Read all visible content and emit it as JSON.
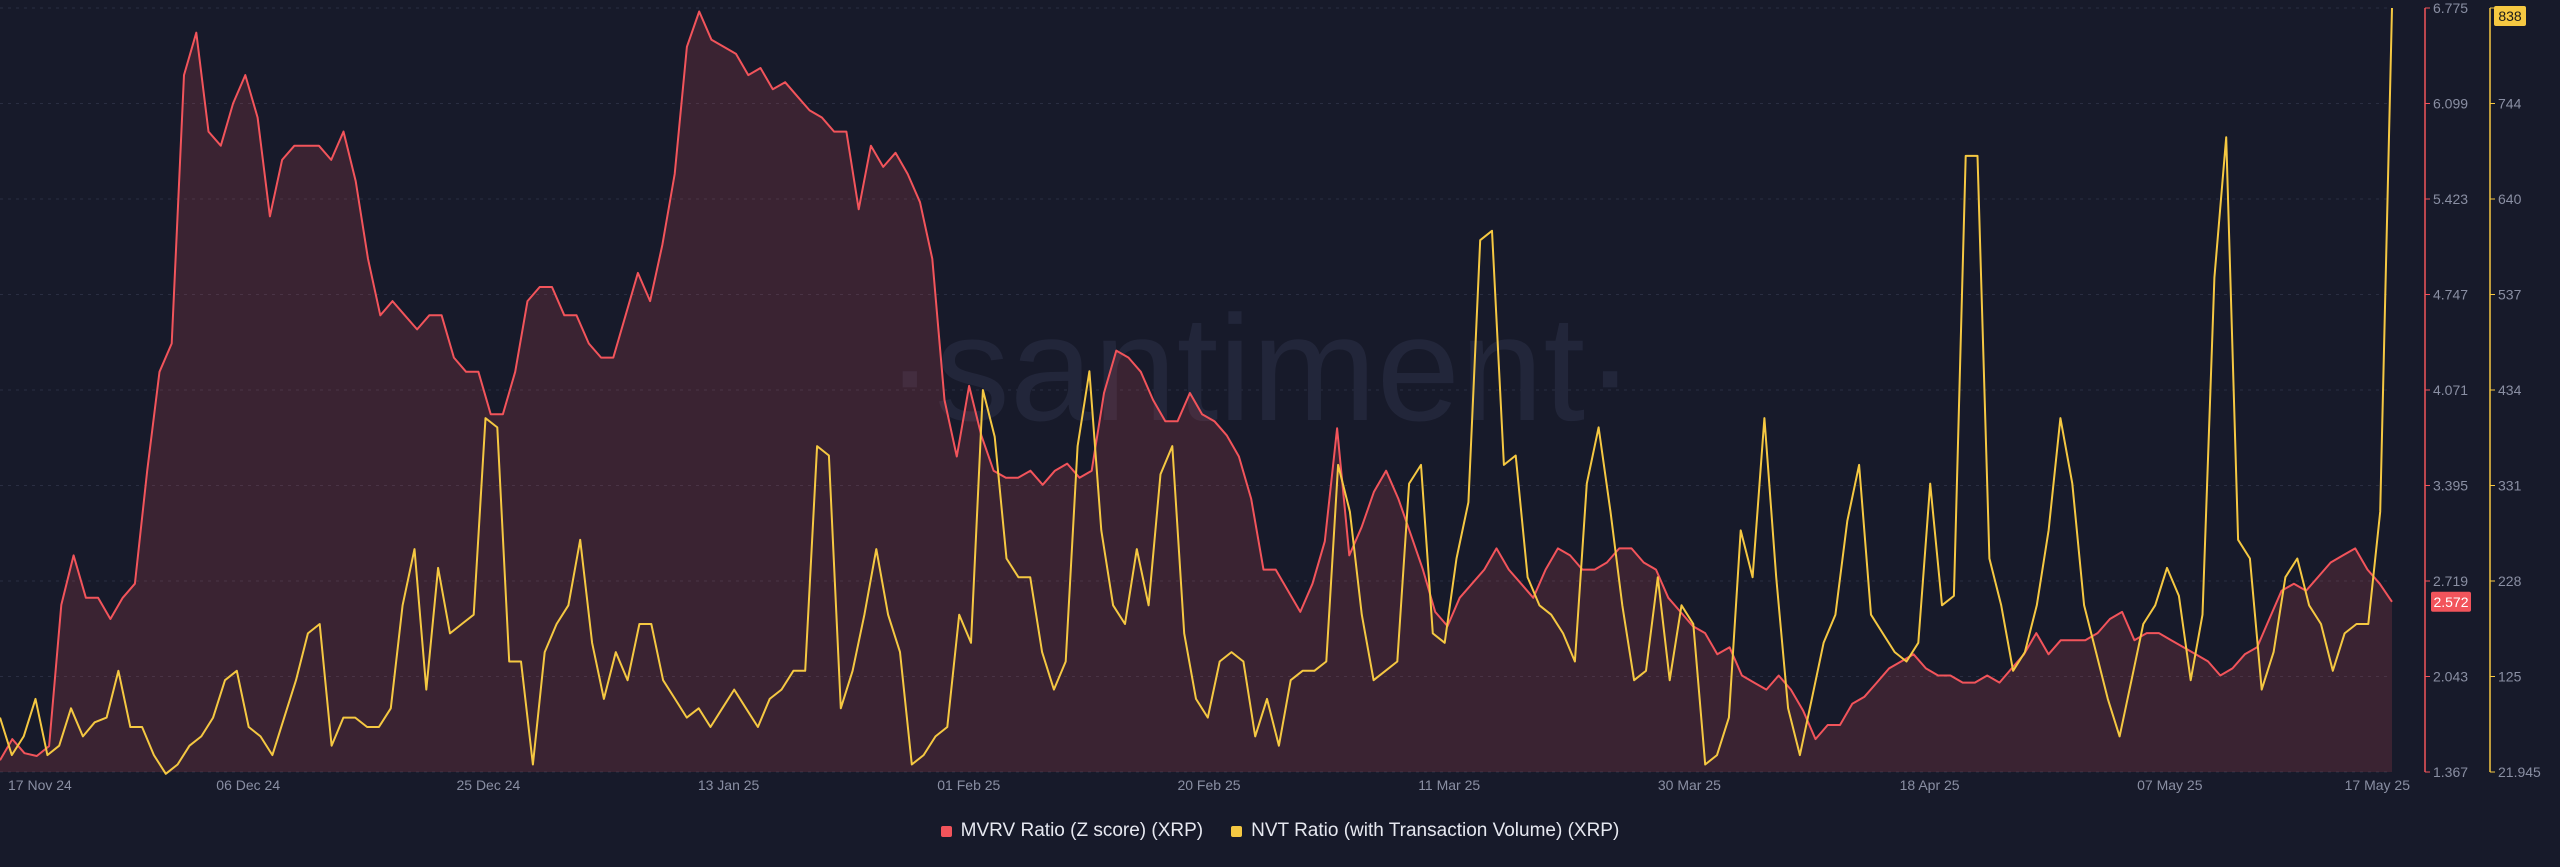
{
  "watermark": "·santiment·",
  "colors": {
    "background": "#171a2a",
    "mvrv": "#f2545b",
    "nvt": "#f5c842",
    "grid": "#2a2e42",
    "text": "#8a8fa3",
    "watermark": "#22263a"
  },
  "chart_data": {
    "type": "line",
    "x_labels": [
      "17 Nov 24",
      "06 Dec 24",
      "25 Dec 24",
      "13 Jan 25",
      "01 Feb 25",
      "20 Feb 25",
      "11 Mar 25",
      "30 Mar 25",
      "18 Apr 25",
      "07 May 25",
      "17 May 25"
    ],
    "left_axis": {
      "color": "#f2545b",
      "ticks": [
        "1.367",
        "2.043",
        "2.719",
        "3.395",
        "4.071",
        "4.747",
        "5.423",
        "6.099",
        "6.775"
      ],
      "ylim": [
        1.367,
        6.775
      ],
      "current_value": "2.572"
    },
    "right_axis": {
      "color": "#f5c842",
      "ticks": [
        "21.945",
        "125",
        "228",
        "331",
        "434",
        "537",
        "640",
        "744",
        "838"
      ],
      "ylim": [
        21.945,
        838
      ],
      "current_value": "838"
    },
    "series": [
      {
        "name": "MVRV Ratio (Z score) (XRP)",
        "color": "#f2545b",
        "axis": "left",
        "style": "area",
        "values": [
          1.45,
          1.6,
          1.5,
          1.48,
          1.55,
          2.55,
          2.9,
          2.6,
          2.6,
          2.45,
          2.6,
          2.7,
          3.5,
          4.2,
          4.4,
          6.3,
          6.6,
          5.9,
          5.8,
          6.1,
          6.3,
          6.0,
          5.3,
          5.7,
          5.8,
          5.8,
          5.8,
          5.7,
          5.9,
          5.55,
          5.0,
          4.6,
          4.7,
          4.6,
          4.5,
          4.6,
          4.6,
          4.3,
          4.2,
          4.2,
          3.9,
          3.9,
          4.2,
          4.7,
          4.8,
          4.8,
          4.6,
          4.6,
          4.4,
          4.3,
          4.3,
          4.6,
          4.9,
          4.7,
          5.1,
          5.6,
          6.5,
          6.75,
          6.55,
          6.5,
          6.45,
          6.3,
          6.35,
          6.2,
          6.25,
          6.15,
          6.05,
          6.0,
          5.9,
          5.9,
          5.35,
          5.8,
          5.65,
          5.75,
          5.6,
          5.4,
          5.0,
          4.0,
          3.6,
          4.1,
          3.75,
          3.5,
          3.45,
          3.45,
          3.5,
          3.4,
          3.5,
          3.55,
          3.45,
          3.5,
          4.05,
          4.35,
          4.3,
          4.2,
          4.0,
          3.85,
          3.85,
          4.05,
          3.9,
          3.85,
          3.75,
          3.6,
          3.3,
          2.8,
          2.8,
          2.65,
          2.5,
          2.7,
          3.0,
          3.8,
          2.9,
          3.1,
          3.35,
          3.5,
          3.3,
          3.05,
          2.8,
          2.5,
          2.4,
          2.6,
          2.7,
          2.8,
          2.95,
          2.8,
          2.7,
          2.6,
          2.8,
          2.95,
          2.9,
          2.8,
          2.8,
          2.85,
          2.95,
          2.95,
          2.85,
          2.8,
          2.6,
          2.5,
          2.4,
          2.35,
          2.2,
          2.25,
          2.05,
          2.0,
          1.95,
          2.05,
          1.95,
          1.8,
          1.6,
          1.7,
          1.7,
          1.85,
          1.9,
          2.0,
          2.1,
          2.15,
          2.2,
          2.1,
          2.05,
          2.05,
          2.0,
          2.0,
          2.05,
          2.0,
          2.1,
          2.2,
          2.35,
          2.2,
          2.3,
          2.3,
          2.3,
          2.35,
          2.45,
          2.5,
          2.3,
          2.35,
          2.35,
          2.3,
          2.25,
          2.2,
          2.15,
          2.05,
          2.1,
          2.2,
          2.25,
          2.45,
          2.65,
          2.7,
          2.65,
          2.75,
          2.85,
          2.9,
          2.95,
          2.8,
          2.7,
          2.572
        ]
      },
      {
        "name": "NVT Ratio (with Transaction Volume) (XRP)",
        "color": "#f5c842",
        "axis": "right",
        "style": "line",
        "values": [
          80,
          40,
          60,
          100,
          40,
          50,
          90,
          60,
          75,
          80,
          130,
          70,
          70,
          40,
          20,
          30,
          50,
          60,
          80,
          120,
          130,
          70,
          60,
          40,
          80,
          120,
          170,
          180,
          50,
          80,
          80,
          70,
          70,
          90,
          200,
          260,
          110,
          240,
          170,
          180,
          190,
          400,
          390,
          140,
          140,
          30,
          150,
          180,
          200,
          270,
          160,
          100,
          150,
          120,
          180,
          180,
          120,
          100,
          80,
          90,
          70,
          90,
          110,
          90,
          70,
          100,
          110,
          130,
          130,
          370,
          360,
          90,
          130,
          190,
          260,
          190,
          150,
          30,
          40,
          60,
          70,
          190,
          160,
          430,
          380,
          250,
          230,
          230,
          150,
          110,
          140,
          370,
          450,
          280,
          200,
          180,
          260,
          200,
          340,
          370,
          170,
          100,
          80,
          140,
          150,
          140,
          60,
          100,
          50,
          120,
          130,
          130,
          140,
          350,
          300,
          190,
          120,
          130,
          140,
          330,
          350,
          170,
          160,
          250,
          310,
          590,
          600,
          350,
          360,
          230,
          200,
          190,
          170,
          140,
          330,
          390,
          300,
          200,
          120,
          130,
          230,
          120,
          200,
          180,
          30,
          40,
          80,
          280,
          230,
          400,
          230,
          90,
          40,
          100,
          160,
          190,
          290,
          350,
          190,
          170,
          150,
          140,
          160,
          330,
          200,
          210,
          680,
          680,
          250,
          200,
          130,
          150,
          200,
          280,
          400,
          330,
          200,
          150,
          100,
          60,
          120,
          180,
          200,
          240,
          210,
          120,
          190,
          550,
          700,
          270,
          250,
          110,
          150,
          230,
          250,
          200,
          180,
          130,
          170,
          180,
          180,
          300,
          838
        ]
      }
    ],
    "legend_position": "bottom-center",
    "grid": true
  }
}
